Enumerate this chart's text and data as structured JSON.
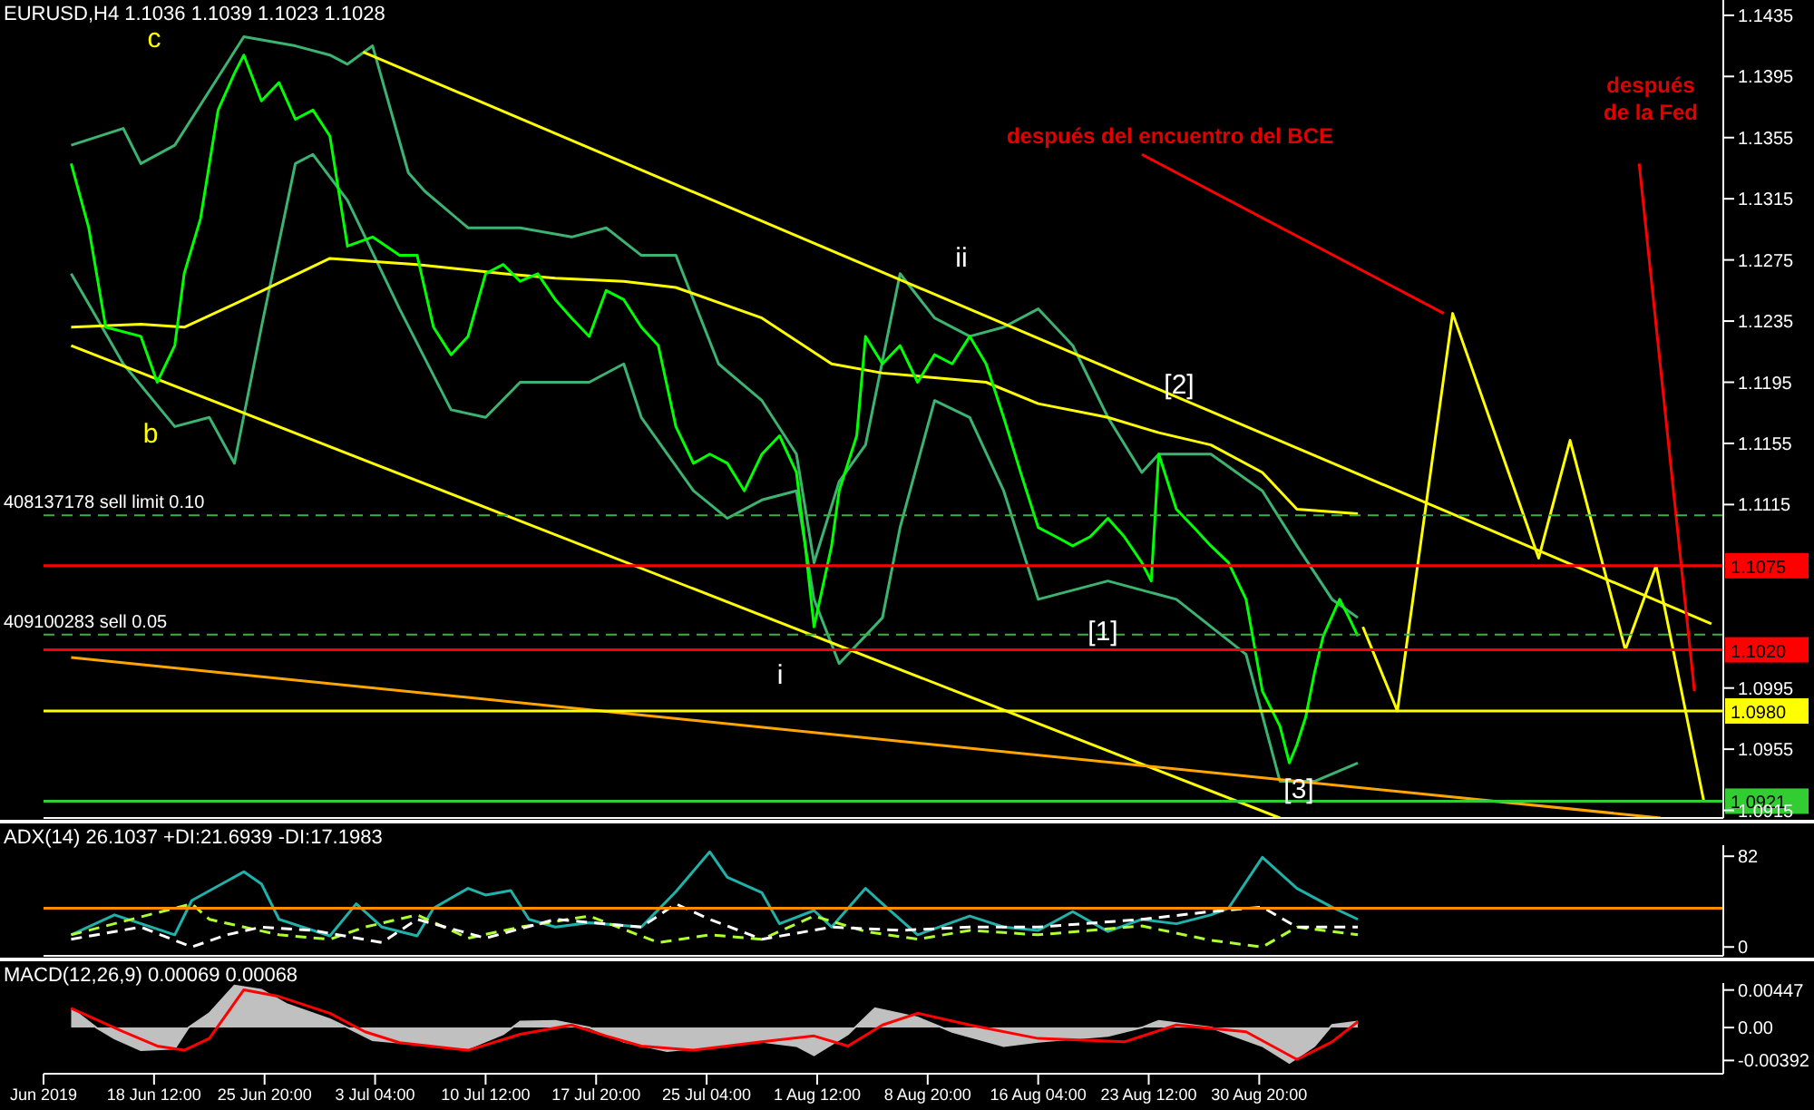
{
  "chart_data": [
    {
      "type": "line",
      "title": "EURUSD,H4  1.1036 1.1039 1.1023 1.1028",
      "xlim": [
        "2019-06-11T04:00",
        "2019-09-30T15:00"
      ],
      "tick_labels": "y",
      "ylim": [
        1.091,
        1.1445
      ],
      "yticks": [
        1.1435,
        1.1395,
        1.1355,
        1.1315,
        1.1275,
        1.1235,
        1.1195,
        1.1155,
        1.1115,
        1.0995,
        1.0955,
        1.0915
      ],
      "grid": false,
      "legend": false,
      "series": [
        {
          "type": "line",
          "color": "#3cb371",
          "x": [
            "2019-06-13T00:00",
            "2019-06-16T11:00",
            "2019-06-17T15:00",
            "2019-06-19T21:00",
            "2019-06-24T11:00",
            "2019-06-27T21:00",
            "2019-06-30T04:00",
            "2019-07-01T08:00",
            "2019-07-03T00:00",
            "2019-07-05T09:00",
            "2019-07-06T11:00",
            "2019-07-09T08:00",
            "2019-07-12T19:00",
            "2019-07-16T05:00",
            "2019-07-18T12:00",
            "2019-07-20T20:00",
            "2019-07-23T03:00",
            "2019-07-25T23:00",
            "2019-07-28T20:00",
            "2019-07-31T03:00",
            "2019-08-01T07:00",
            "2019-08-02T23:00",
            "2019-08-04T17:00",
            "2019-08-07T00:00",
            "2019-08-09T07:00",
            "2019-08-11T15:00",
            "2019-08-13T21:00",
            "2019-08-16T04:00",
            "2019-08-18T11:00",
            "2019-08-20T19:00",
            "2019-08-23T01:00",
            "2019-08-24T04:00",
            "2019-08-27T15:00",
            "2019-08-31T01:00",
            "2019-09-02T08:00",
            "2019-09-04T16:00",
            "2019-09-06T09:00"
          ],
          "values": [
            1.135,
            1.1361,
            1.1338,
            1.135,
            1.1421,
            1.1415,
            1.1409,
            1.1403,
            1.1415,
            1.1332,
            1.132,
            1.1296,
            1.1296,
            1.129,
            1.1296,
            1.1278,
            1.1278,
            1.1207,
            1.1183,
            1.1148,
            1.1077,
            1.113,
            1.1154,
            1.1266,
            1.1237,
            1.1225,
            1.1231,
            1.1243,
            1.1219,
            1.1172,
            1.1136,
            1.1148,
            1.1148,
            1.1124,
            1.1088,
            1.1053,
            1.1041
          ]
        },
        {
          "type": "line",
          "color": "#3cb371",
          "x": [
            "2019-06-13T00:00",
            "2019-06-16T11:00",
            "2019-06-19T21:00",
            "2019-06-22T04:00",
            "2019-06-23T20:00",
            "2019-06-25T15:00",
            "2019-06-27T21:00",
            "2019-06-29T01:00",
            "2019-07-01T08:00",
            "2019-07-04T19:00",
            "2019-07-08T05:00",
            "2019-07-10T12:00",
            "2019-07-12T19:00",
            "2019-07-17T09:00",
            "2019-07-19T16:00",
            "2019-07-20T20:00",
            "2019-07-24T07:00",
            "2019-07-26T13:00",
            "2019-07-28T20:00",
            "2019-07-31T03:00",
            "2019-08-01T07:00",
            "2019-08-02T23:00",
            "2019-08-05T20:00",
            "2019-08-07T00:00",
            "2019-08-09T07:00",
            "2019-08-11T15:00",
            "2019-08-13T21:00",
            "2019-08-16T04:00",
            "2019-08-20T19:00",
            "2019-08-25T08:00",
            "2019-08-29T23:00",
            "2019-09-01T05:00",
            "2019-09-03T12:00",
            "2019-09-06T09:00"
          ],
          "values": [
            1.1266,
            1.1207,
            1.1166,
            1.1172,
            1.1142,
            1.1231,
            1.1338,
            1.1344,
            1.1314,
            1.1243,
            1.1177,
            1.1172,
            1.1195,
            1.1195,
            1.1207,
            1.1172,
            1.1124,
            1.1106,
            1.1118,
            1.1124,
            1.1053,
            1.1011,
            1.1041,
            1.11,
            1.1183,
            1.1172,
            1.1124,
            1.1053,
            1.1065,
            1.1053,
            1.1017,
            1.0934,
            1.0934,
            1.0946
          ]
        },
        {
          "type": "line",
          "color": "#ffff00",
          "x": [
            "2019-06-13T00:00",
            "2019-06-17T15:00",
            "2019-06-20T12:00",
            "2019-06-24T11:00",
            "2019-06-30T04:00",
            "2019-07-05T23:00",
            "2019-07-11T16:00",
            "2019-07-15T03:00",
            "2019-07-19T16:00",
            "2019-07-23T03:00",
            "2019-07-28T20:00",
            "2019-08-02T11:00",
            "2019-08-05T20:00",
            "2019-08-09T07:00",
            "2019-08-12T17:00",
            "2019-08-16T04:00",
            "2019-08-20T19:00",
            "2019-08-24T04:00",
            "2019-08-27T15:00",
            "2019-08-31T01:00",
            "2019-09-02T08:00",
            "2019-09-06T09:00"
          ],
          "values": [
            1.1231,
            1.1233,
            1.1231,
            1.1249,
            1.1276,
            1.1272,
            1.1266,
            1.1263,
            1.1261,
            1.1257,
            1.1237,
            1.1207,
            1.1201,
            1.1198,
            1.1195,
            1.1181,
            1.1172,
            1.1162,
            1.1154,
            1.1136,
            1.1112,
            1.1109
          ]
        },
        {
          "type": "line",
          "color": "#ffff00",
          "x": [
            "2019-07-02T09:00",
            "2019-09-29T20:00"
          ],
          "values": [
            1.1411,
            1.1037
          ]
        },
        {
          "type": "line",
          "color": "#ffff00",
          "x": [
            "2019-06-13T00:00",
            "2019-09-01T05:00"
          ],
          "values": [
            1.1219,
            1.091
          ]
        },
        {
          "type": "line",
          "color": "#ffa500",
          "x": [
            "2019-06-13T00:00",
            "2019-09-26T11:00"
          ],
          "values": [
            1.1015,
            1.091
          ]
        },
        {
          "type": "line",
          "color": "#00ff00",
          "x": [
            "2019-06-13T00:00",
            "2019-06-14T04:00",
            "2019-06-15T07:00",
            "2019-06-17T15:00",
            "2019-06-18T17:00",
            "2019-06-19T21:00",
            "2019-06-20T12:00",
            "2019-06-21T14:00",
            "2019-06-22T18:00",
            "2019-06-23T20:00",
            "2019-06-24T11:00",
            "2019-06-25T15:00",
            "2019-06-26T19:00",
            "2019-06-27T21:00",
            "2019-06-29T01:00",
            "2019-06-30T04:00",
            "2019-07-01T08:00",
            "2019-07-03T00:00",
            "2019-07-04T19:00",
            "2019-07-05T23:00",
            "2019-07-07T01:00",
            "2019-07-08T05:00",
            "2019-07-09T08:00",
            "2019-07-10T12:00",
            "2019-07-11T16:00",
            "2019-07-12T19:00",
            "2019-07-13T23:00",
            "2019-07-15T03:00",
            "2019-07-16T05:00",
            "2019-07-17T09:00",
            "2019-07-18T12:00",
            "2019-07-19T16:00",
            "2019-07-20T20:00",
            "2019-07-21T23:00",
            "2019-07-23T03:00",
            "2019-07-24T07:00",
            "2019-07-25T09:00",
            "2019-07-26T13:00",
            "2019-07-27T16:00",
            "2019-07-28T20:00",
            "2019-07-30T00:00",
            "2019-07-31T03:00",
            "2019-07-31T17:00",
            "2019-08-01T07:00",
            "2019-08-02T11:00",
            "2019-08-02T23:00",
            "2019-08-04T03:00",
            "2019-08-04T17:00",
            "2019-08-05T20:00",
            "2019-08-07T00:00",
            "2019-08-08T04:00",
            "2019-08-09T07:00",
            "2019-08-10T11:00",
            "2019-08-11T15:00",
            "2019-08-12T17:00",
            "2019-08-13T21:00",
            "2019-08-15T00:00",
            "2019-08-16T04:00",
            "2019-08-17T08:00",
            "2019-08-18T11:00",
            "2019-08-19T15:00",
            "2019-08-20T19:00",
            "2019-08-21T21:00",
            "2019-08-23T01:00",
            "2019-08-23T16:00",
            "2019-08-24T04:00",
            "2019-08-25T08:00",
            "2019-08-26T12:00",
            "2019-08-27T15:00",
            "2019-08-28T19:00",
            "2019-08-29T23:00",
            "2019-08-31T01:00",
            "2019-09-01T05:00",
            "2019-09-01T20:00",
            "2019-09-02T08:00",
            "2019-09-02T22:00",
            "2019-09-03T12:00",
            "2019-09-04T02:00",
            "2019-09-05T04:00",
            "2019-09-05T19:00",
            "2019-09-06T09:00"
          ],
          "values": [
            1.1338,
            1.1296,
            1.1231,
            1.1225,
            1.1195,
            1.1219,
            1.1266,
            1.1302,
            1.1373,
            1.1397,
            1.1409,
            1.1379,
            1.1391,
            1.1367,
            1.1373,
            1.1356,
            1.1284,
            1.129,
            1.1278,
            1.1278,
            1.1231,
            1.1213,
            1.1225,
            1.1266,
            1.1272,
            1.1261,
            1.1266,
            1.1249,
            1.1237,
            1.1225,
            1.1255,
            1.1249,
            1.1231,
            1.1219,
            1.1166,
            1.1142,
            1.1148,
            1.1142,
            1.1124,
            1.1148,
            1.116,
            1.1136,
            1.1088,
            1.1035,
            1.1088,
            1.1124,
            1.116,
            1.1225,
            1.1207,
            1.1219,
            1.1195,
            1.1213,
            1.1207,
            1.1225,
            1.1207,
            1.1172,
            1.1136,
            1.11,
            1.1094,
            1.1088,
            1.1094,
            1.1106,
            1.1094,
            1.1077,
            1.1065,
            1.1148,
            1.1112,
            1.11,
            1.1088,
            1.1077,
            1.1053,
            1.0993,
            1.097,
            1.0946,
            1.0958,
            1.0976,
            1.1005,
            1.1029,
            1.1053,
            1.1041,
            1.1029
          ]
        },
        {
          "type": "line",
          "color": "#ffff00",
          "x": [
            "2019-09-06T17:00",
            "2019-09-09T00:00",
            "2019-09-12T16:00",
            "2019-09-18T09:00",
            "2019-09-20T11:00",
            "2019-09-24T03:00",
            "2019-09-26T04:00",
            "2019-09-29T08:00"
          ],
          "values": [
            1.1035,
            1.098,
            1.124,
            1.108,
            1.1157,
            1.102,
            1.1075,
            1.0921
          ]
        },
        {
          "type": "line",
          "color": "#ff0000",
          "x": [
            "2019-08-23T01:00",
            "2019-09-12T02:00"
          ],
          "values": [
            1.1344,
            1.124
          ]
        },
        {
          "type": "line",
          "color": "#ff0000",
          "x": [
            "2019-09-25T01:00",
            "2019-09-28T17:00"
          ],
          "values": [
            1.1338,
            1.0993
          ]
        }
      ],
      "ref_lines": [
        {
          "axis": "y",
          "value": 1.1108,
          "label": "408137178 sell limit 0.10",
          "color": "#3cb043",
          "line_style": "dashed"
        },
        {
          "axis": "y",
          "value": 1.103,
          "label": "409100283 sell 0.05",
          "color": "#3cb043",
          "line_style": "dashed"
        },
        {
          "axis": "y",
          "value": 1.1075,
          "label": "1.1075",
          "color": "#ff0000",
          "line_style": "solid"
        },
        {
          "axis": "y",
          "value": 1.102,
          "label": "1.1020",
          "color": "#ff0000",
          "line_style": "solid"
        },
        {
          "axis": "y",
          "value": 1.098,
          "label": "1.0980",
          "color": "#ffff00",
          "line_style": "solid"
        },
        {
          "axis": "y",
          "value": 1.0921,
          "label": "1.0921",
          "color": "#32cd32",
          "line_style": "solid"
        }
      ],
      "annotations": [
        "c",
        "b",
        "ii",
        "[2]",
        "[1]",
        "i",
        "[3]",
        "después del encuentro del BCE",
        "después\nde la Fed"
      ]
    },
    {
      "type": "line",
      "title": "ADX(14) 26.1037 +DI:21.6939 -DI:17.1983",
      "xlim": [
        "2019-06-11T04:00",
        "2019-09-30T15:00"
      ],
      "tick_labels": "y",
      "ylim": [
        -8,
        92
      ],
      "yticks": [
        82,
        0
      ],
      "grid": false,
      "legend": false,
      "series": [
        {
          "type": "line",
          "color": "#20b2aa",
          "x": [
            "2019-06-13T00:00",
            "2019-06-15T21:00",
            "2019-06-19T21:00",
            "2019-06-21T00:00",
            "2019-06-24T11:00",
            "2019-06-25T15:00",
            "2019-06-26T19:00",
            "2019-06-30T04:00",
            "2019-07-01T22:00",
            "2019-07-03T15:00",
            "2019-07-05T23:00",
            "2019-07-07T01:00",
            "2019-07-09T08:00",
            "2019-07-10T12:00",
            "2019-07-12T04:00",
            "2019-07-13T09:00",
            "2019-07-15T03:00",
            "2019-07-17T09:00",
            "2019-07-20T20:00",
            "2019-07-23T03:00",
            "2019-07-25T09:00",
            "2019-07-26T13:00",
            "2019-07-28T20:00",
            "2019-07-30T00:00",
            "2019-08-01T07:00",
            "2019-08-02T11:00",
            "2019-08-04T17:00",
            "2019-08-05T20:00",
            "2019-08-08T04:00",
            "2019-08-11T15:00",
            "2019-08-13T21:00",
            "2019-08-16T04:00",
            "2019-08-18T11:00",
            "2019-08-20T19:00",
            "2019-08-23T01:00",
            "2019-08-25T08:00",
            "2019-08-27T15:00",
            "2019-08-28T19:00",
            "2019-08-31T01:00",
            "2019-09-02T08:00",
            "2019-09-04T16:00",
            "2019-09-06T09:00"
          ],
          "values": [
            11,
            29,
            11,
            42,
            68,
            57,
            25,
            10,
            39,
            18,
            10,
            35,
            53,
            47,
            51,
            25,
            18,
            22,
            18,
            50,
            86,
            63,
            49,
            21,
            33,
            18,
            53,
            39,
            11,
            28,
            18,
            15,
            32,
            14,
            25,
            21,
            29,
            35,
            81,
            53,
            36,
            25
          ]
        },
        {
          "type": "line",
          "color": "#adff2f",
          "line_style": "dashed",
          "x": [
            "2019-06-13T00:00",
            "2019-06-21T00:00",
            "2019-06-22T04:00",
            "2019-06-24T11:00",
            "2019-06-26T19:00",
            "2019-06-30T04:00",
            "2019-07-02T12:00",
            "2019-07-05T23:00",
            "2019-07-09T08:00",
            "2019-07-12T19:00",
            "2019-07-17T09:00",
            "2019-07-21T23:00",
            "2019-07-25T09:00",
            "2019-07-28T20:00",
            "2019-08-01T07:00",
            "2019-08-04T17:00",
            "2019-08-08T04:00",
            "2019-08-11T15:00",
            "2019-08-16T04:00",
            "2019-08-23T01:00",
            "2019-08-27T15:00",
            "2019-08-31T01:00",
            "2019-09-02T08:00",
            "2019-09-06T09:00"
          ],
          "values": [
            11,
            39,
            25,
            18,
            11,
            7,
            18,
            29,
            8,
            18,
            28,
            4,
            11,
            7,
            28,
            14,
            7,
            15,
            11,
            19,
            6,
            0,
            18,
            11
          ]
        },
        {
          "type": "line",
          "color": "#ffffff",
          "line_style": "dashed",
          "x": [
            "2019-06-13T00:00",
            "2019-06-17T15:00",
            "2019-06-21T00:00",
            "2019-06-23T08:00",
            "2019-06-25T15:00",
            "2019-06-29T01:00",
            "2019-07-03T15:00",
            "2019-07-05T23:00",
            "2019-07-10T12:00",
            "2019-07-15T03:00",
            "2019-07-20T20:00",
            "2019-07-23T03:00",
            "2019-07-25T09:00",
            "2019-07-28T20:00",
            "2019-08-02T11:00",
            "2019-08-07T00:00",
            "2019-08-11T15:00",
            "2019-08-16T04:00",
            "2019-08-23T01:00",
            "2019-08-27T15:00",
            "2019-08-31T01:00",
            "2019-09-02T08:00",
            "2019-09-06T09:00"
          ],
          "values": [
            7,
            18,
            0,
            11,
            18,
            15,
            4,
            25,
            8,
            25,
            18,
            39,
            25,
            7,
            18,
            15,
            18,
            18,
            25,
            32,
            36,
            18,
            18
          ]
        }
      ],
      "ref_lines": [
        {
          "axis": "y",
          "value": 35,
          "color": "#ff8c00",
          "line_style": "solid"
        }
      ]
    },
    {
      "type": "line",
      "title": "MACD(12,26,9) 0.00069 0.00068",
      "xlim": [
        "2019-06-11T04:00",
        "2019-09-30T15:00"
      ],
      "xticks": [
        {
          "value": "2019-06-11T04:00",
          "label": "Jun 2019"
        },
        {
          "value": "2019-06-18T12:00",
          "label": "18 Jun 12:00"
        },
        {
          "value": "2019-06-25T20:00",
          "label": "25 Jun 20:00"
        },
        {
          "value": "2019-07-03T04:00",
          "label": "3 Jul 04:00"
        },
        {
          "value": "2019-07-10T12:00",
          "label": "10 Jul 12:00"
        },
        {
          "value": "2019-07-17T20:00",
          "label": "17 Jul 20:00"
        },
        {
          "value": "2019-07-25T04:00",
          "label": "25 Jul 04:00"
        },
        {
          "value": "2019-08-01T12:00",
          "label": "1 Aug 12:00"
        },
        {
          "value": "2019-08-08T20:00",
          "label": "8 Aug 20:00"
        },
        {
          "value": "2019-08-16T04:00",
          "label": "16 Aug 04:00"
        },
        {
          "value": "2019-08-23T12:00",
          "label": "23 Aug 12:00"
        },
        {
          "value": "2019-08-30T20:00",
          "label": "30 Aug 20:00"
        }
      ],
      "ylim": [
        -0.0055,
        0.0053
      ],
      "yticks": [
        0.00447,
        {
          "value": 0,
          "label": "0.00"
        },
        -0.00392
      ],
      "grid": false,
      "legend": false,
      "series": [
        {
          "type": "area",
          "color": "#c0c0c0",
          "x": [
            "2019-06-13T00:00",
            "2019-06-14T16:00",
            "2019-06-15T21:00",
            "2019-06-17T15:00",
            "2019-06-19T21:00",
            "2019-06-20T19:00",
            "2019-06-22T04:00",
            "2019-06-23T20:00",
            "2019-06-25T15:00",
            "2019-06-27T07:00",
            "2019-06-30T04:00",
            "2019-07-01T08:00",
            "2019-07-03T00:00",
            "2019-07-05T23:00",
            "2019-07-09T08:00",
            "2019-07-11T16:00",
            "2019-07-12T19:00",
            "2019-07-15T03:00",
            "2019-07-17T09:00",
            "2019-07-19T16:00",
            "2019-07-22T13:00",
            "2019-07-25T09:00",
            "2019-07-28T20:00",
            "2019-07-31T03:00",
            "2019-08-01T07:00",
            "2019-08-03T13:00",
            "2019-08-05T08:00",
            "2019-08-08T04:00",
            "2019-08-10T11:00",
            "2019-08-13T21:00",
            "2019-08-16T04:00",
            "2019-08-20T19:00",
            "2019-08-23T01:00",
            "2019-08-24T04:00",
            "2019-08-27T15:00",
            "2019-08-31T01:00",
            "2019-09-01T20:00",
            "2019-09-03T12:00",
            "2019-09-04T16:00",
            "2019-09-06T09:00"
          ],
          "values": [
            0.0023,
            0,
            -0.0013,
            -0.0027,
            -0.0025,
            0,
            0.0017,
            0.005,
            0.0045,
            0.0028,
            0.001,
            0,
            -0.0015,
            -0.002,
            -0.0025,
            -0.0008,
            0.0007,
            0.0008,
            0,
            -0.0017,
            -0.0028,
            -0.0023,
            -0.0017,
            -0.0022,
            -0.0033,
            -0.0008,
            0.0023,
            0.0012,
            -0.0005,
            -0.0022,
            -0.0017,
            -0.001,
            0,
            0.0008,
            0,
            -0.0022,
            -0.0042,
            -0.0022,
            0.0003,
            0.0007
          ]
        },
        {
          "type": "line",
          "color": "#ff0000",
          "x": [
            "2019-06-13T00:00",
            "2019-06-16T11:00",
            "2019-06-18T17:00",
            "2019-06-20T12:00",
            "2019-06-22T04:00",
            "2019-06-24T11:00",
            "2019-06-26T19:00",
            "2019-06-30T04:00",
            "2019-07-02T12:00",
            "2019-07-04T19:00",
            "2019-07-09T08:00",
            "2019-07-12T19:00",
            "2019-07-16T05:00",
            "2019-07-18T12:00",
            "2019-07-20T20:00",
            "2019-07-24T07:00",
            "2019-07-28T20:00",
            "2019-08-01T07:00",
            "2019-08-03T13:00",
            "2019-08-05T20:00",
            "2019-08-08T04:00",
            "2019-08-11T15:00",
            "2019-08-16T04:00",
            "2019-08-21T21:00",
            "2019-08-25T08:00",
            "2019-08-29T23:00",
            "2019-09-02T08:00",
            "2019-09-04T16:00",
            "2019-09-06T09:00"
          ],
          "values": [
            0.0023,
            -0.0005,
            -0.0022,
            -0.0027,
            -0.0013,
            0.0045,
            0.0037,
            0.0017,
            -0.0005,
            -0.0018,
            -0.0027,
            -0.0008,
            0.0003,
            -0.001,
            -0.0022,
            -0.0027,
            -0.0017,
            -0.001,
            -0.0022,
            0.0003,
            0.0017,
            0.0003,
            -0.0013,
            -0.0017,
            0.0003,
            -0.0005,
            -0.0038,
            -0.0017,
            0.0007
          ]
        }
      ]
    }
  ]
}
